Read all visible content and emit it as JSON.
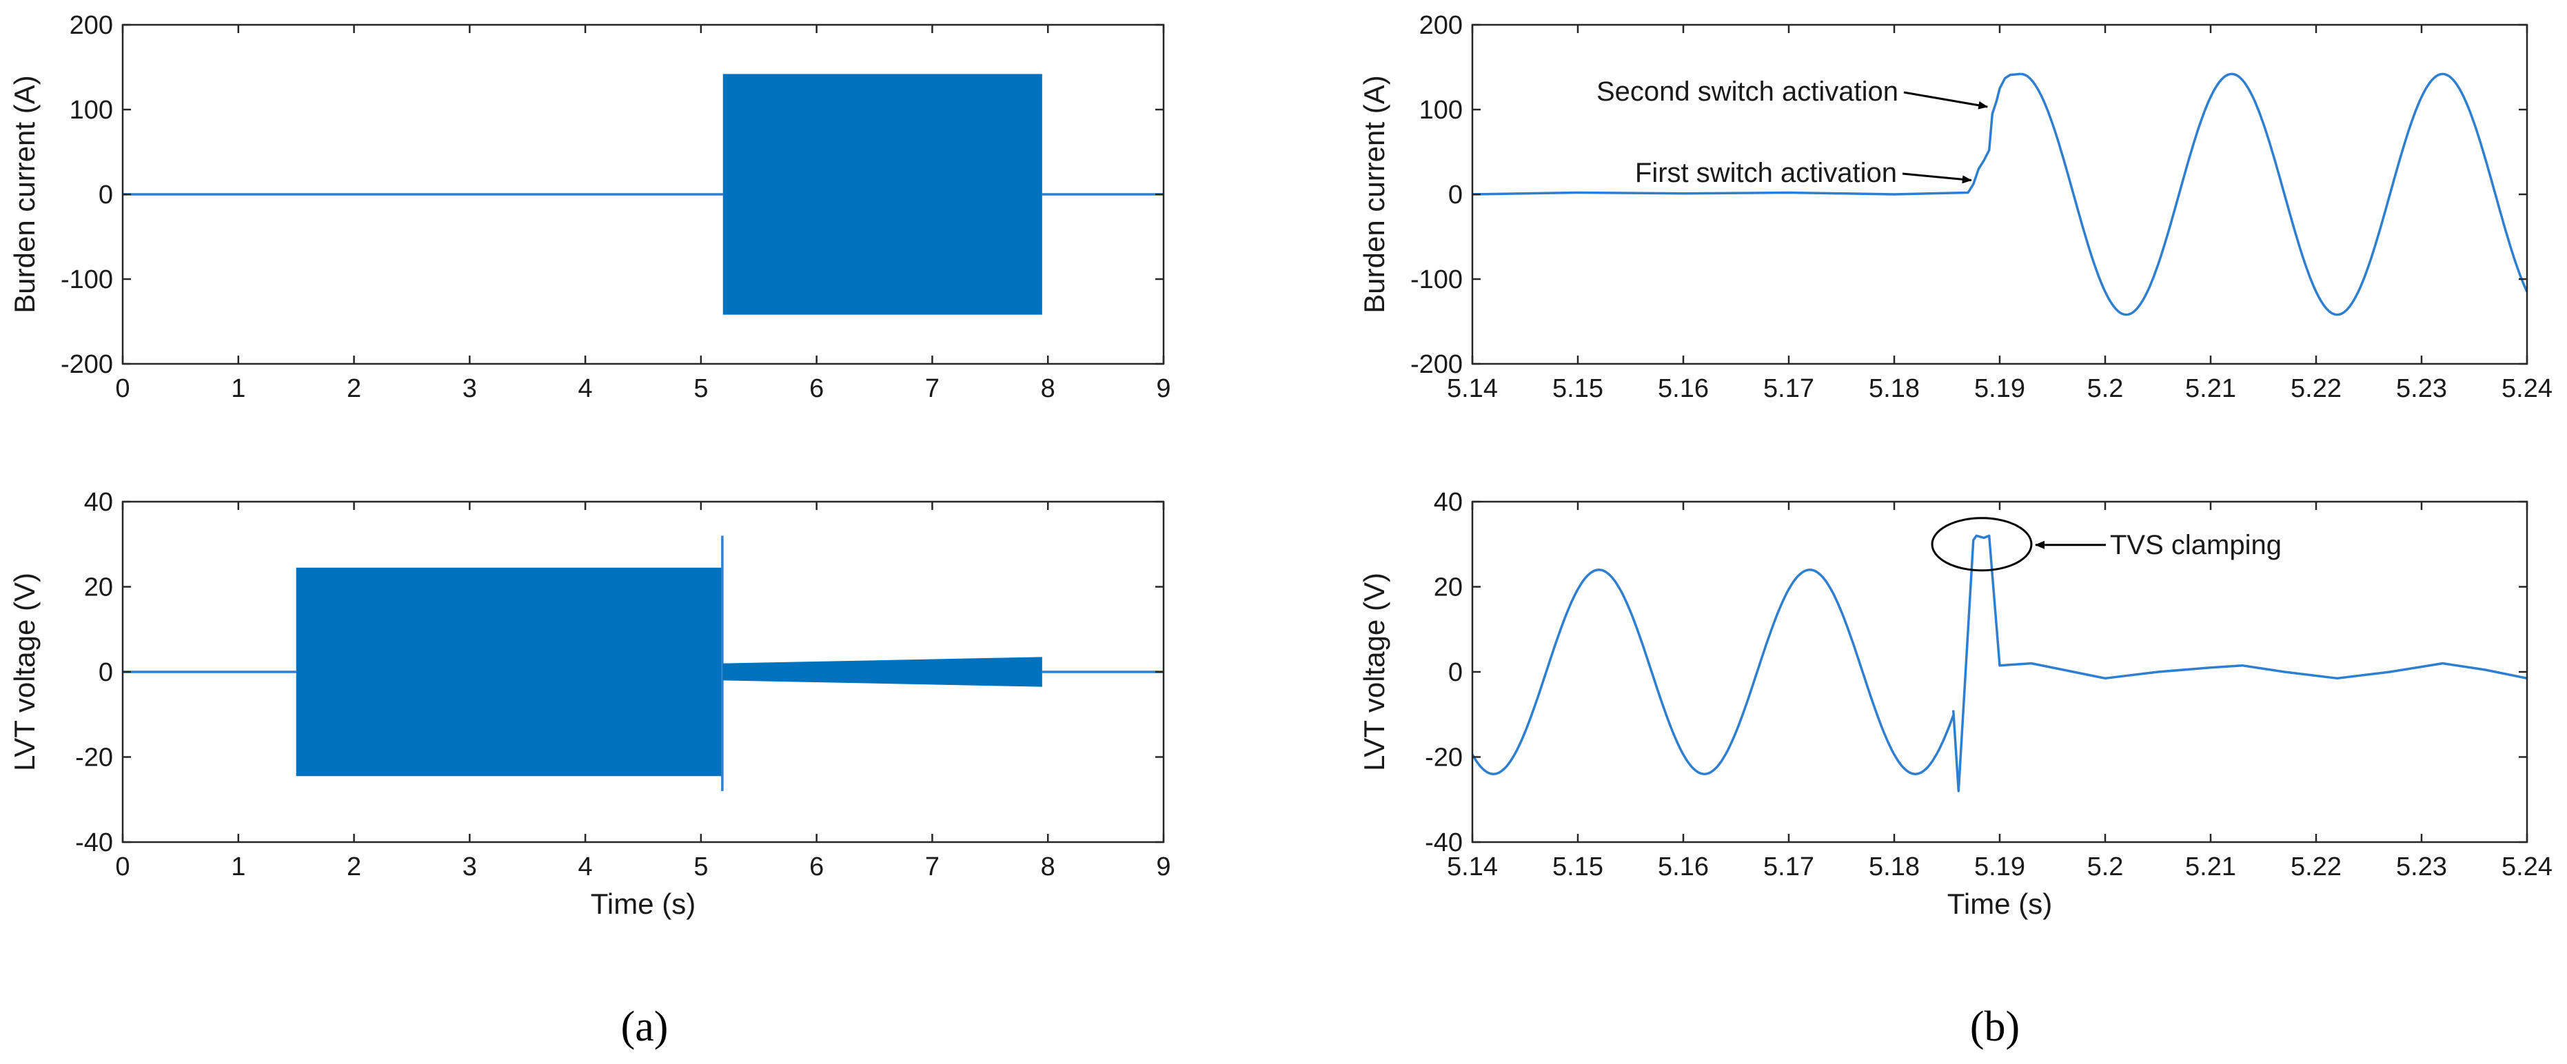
{
  "colors": {
    "trace": "#2f7fd0",
    "band": "#0072bd"
  },
  "figure": {
    "panel_labels": [
      "(a)",
      "(b)"
    ]
  },
  "chart_data": [
    {
      "id": "a_top",
      "type": "line",
      "xlabel": "",
      "ylabel": "Burden current (A)",
      "xlim": [
        0,
        9
      ],
      "ylim": [
        -200,
        200
      ],
      "xticks": [
        0,
        1,
        2,
        3,
        4,
        5,
        6,
        7,
        8,
        9
      ],
      "yticks": [
        -200,
        -100,
        0,
        100,
        200
      ],
      "xticklabels": [
        "0",
        "1",
        "2",
        "3",
        "4",
        "5",
        "6",
        "7",
        "8",
        "9"
      ],
      "yticklabels": [
        "-200",
        "-100",
        "0",
        "100",
        "200"
      ],
      "series": [
        {
          "kind": "line",
          "x": [
            0,
            5.19
          ],
          "y": [
            0,
            0
          ]
        },
        {
          "kind": "band",
          "x0": 5.19,
          "x1": 7.95,
          "y0": -142,
          "y1": 142
        },
        {
          "kind": "line",
          "x": [
            7.95,
            9
          ],
          "y": [
            0,
            0
          ]
        }
      ],
      "annotations": []
    },
    {
      "id": "a_bottom",
      "type": "line",
      "xlabel": "Time (s)",
      "ylabel": "LVT voltage (V)",
      "xlim": [
        0,
        9
      ],
      "ylim": [
        -40,
        40
      ],
      "xticks": [
        0,
        1,
        2,
        3,
        4,
        5,
        6,
        7,
        8,
        9
      ],
      "yticks": [
        -40,
        -20,
        0,
        20,
        40
      ],
      "xticklabels": [
        "0",
        "1",
        "2",
        "3",
        "4",
        "5",
        "6",
        "7",
        "8",
        "9"
      ],
      "yticklabels": [
        "-40",
        "-20",
        "0",
        "20",
        "40"
      ],
      "series": [
        {
          "kind": "line",
          "x": [
            0,
            1.5
          ],
          "y": [
            0,
            0
          ]
        },
        {
          "kind": "band",
          "x0": 1.5,
          "x1": 5.18,
          "y0": -24.5,
          "y1": 24.5
        },
        {
          "kind": "line",
          "x": [
            5.185,
            5.185
          ],
          "y": [
            -28,
            32
          ]
        },
        {
          "kind": "band",
          "x0": 5.19,
          "x1": 7.95,
          "y0": -2,
          "y1": 2,
          "y1_end": 3.5,
          "y0_end": -3.5
        },
        {
          "kind": "line",
          "x": [
            7.95,
            9
          ],
          "y": [
            0,
            0
          ]
        }
      ],
      "annotations": []
    },
    {
      "id": "b_top",
      "type": "line",
      "xlabel": "",
      "ylabel": "Burden current (A)",
      "xlim": [
        5.14,
        5.24
      ],
      "ylim": [
        -200,
        200
      ],
      "xticks": [
        5.14,
        5.15,
        5.16,
        5.17,
        5.18,
        5.19,
        5.2,
        5.21,
        5.22,
        5.23,
        5.24
      ],
      "yticks": [
        -200,
        -100,
        0,
        100,
        200
      ],
      "xticklabels": [
        "5.14",
        "5.15",
        "5.16",
        "5.17",
        "5.18",
        "5.19",
        "5.2",
        "5.21",
        "5.22",
        "5.23",
        "5.24"
      ],
      "yticklabels": [
        "-200",
        "-100",
        "0",
        "100",
        "200"
      ],
      "series": [
        {
          "kind": "line",
          "x": [
            5.14,
            5.15,
            5.16,
            5.17,
            5.18,
            5.187,
            5.1875,
            5.188,
            5.1885,
            5.189,
            5.1893,
            5.1897,
            5.19,
            5.1905,
            5.191,
            5.192
          ],
          "y": [
            0,
            2,
            1,
            2,
            0,
            2,
            12,
            30,
            40,
            52,
            95,
            110,
            125,
            137,
            141,
            142
          ]
        }
      ],
      "annotations": [
        {
          "text": "Second switch activation",
          "x": 5.1891,
          "y": 100
        },
        {
          "text": "First switch activation",
          "x": 5.1877,
          "y": 15
        }
      ]
    },
    {
      "id": "b_bottom",
      "type": "line",
      "xlabel": "Time (s)",
      "ylabel": "LVT voltage (V)",
      "xlim": [
        5.14,
        5.24
      ],
      "ylim": [
        -40,
        40
      ],
      "xticks": [
        5.14,
        5.15,
        5.16,
        5.17,
        5.18,
        5.19,
        5.2,
        5.21,
        5.22,
        5.23,
        5.24
      ],
      "yticks": [
        -40,
        -20,
        0,
        20,
        40
      ],
      "xticklabels": [
        "5.14",
        "5.15",
        "5.16",
        "5.17",
        "5.18",
        "5.19",
        "5.2",
        "5.21",
        "5.22",
        "5.23",
        "5.24"
      ],
      "yticklabels": [
        "-40",
        "-20",
        "0",
        "20",
        "40"
      ],
      "series": [
        {
          "kind": "line",
          "x": [
            5.1856,
            5.1861,
            5.1875,
            5.1878,
            5.1885,
            5.189,
            5.19,
            5.193,
            5.196,
            5.2,
            5.205,
            5.21,
            5.213,
            5.217,
            5.222,
            5.227,
            5.232,
            5.236,
            5.24
          ],
          "y": [
            -9,
            -28,
            31,
            32,
            31.5,
            32,
            1.5,
            2,
            0.5,
            -1.5,
            0,
            1,
            1.5,
            0,
            -1.5,
            0,
            2,
            0.5,
            -1.5
          ]
        }
      ],
      "annotations": [
        {
          "text": "TVS clamping",
          "x": 5.1883,
          "y": 30
        }
      ]
    }
  ]
}
